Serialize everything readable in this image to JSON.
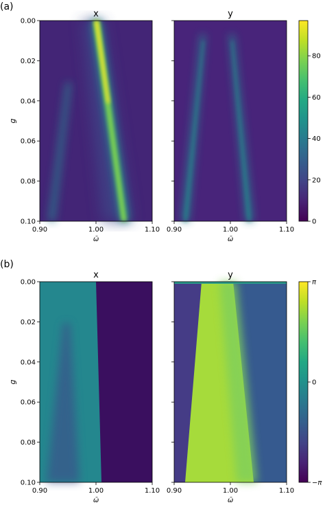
{
  "chart_data": [
    {
      "panel_label": "(a)",
      "type": "heatmap",
      "subplots": [
        {
          "title": "x",
          "xlabel": "ω̄",
          "ylabel": "g",
          "xlim": [
            0.9,
            1.1
          ],
          "ylim": [
            0.1,
            0.0
          ],
          "xticks": [
            "0.90",
            "1.00",
            "1.10"
          ],
          "yticks": [
            "0.00",
            "0.02",
            "0.04",
            "0.06",
            "0.08",
            "0.10"
          ],
          "features": [
            {
              "kind": "bright-line",
              "from": [
                1.0,
                0.0
              ],
              "to": [
                1.03,
                0.1
              ],
              "value": 95
            },
            {
              "kind": "faint-line",
              "from": [
                0.96,
                0.03
              ],
              "to": [
                0.92,
                0.1
              ],
              "value": 25
            }
          ],
          "background": 10
        },
        {
          "title": "y",
          "xlabel": "ω̄",
          "ylabel": "",
          "xlim": [
            0.9,
            1.1
          ],
          "ylim": [
            0.1,
            0.0
          ],
          "xticks": [
            "0.90",
            "1.00",
            "1.10"
          ],
          "yticks": [],
          "features": [
            {
              "kind": "faint-line",
              "from": [
                0.98,
                0.01
              ],
              "to": [
                0.92,
                0.1
              ],
              "value": 35
            },
            {
              "kind": "faint-line",
              "from": [
                1.0,
                0.01
              ],
              "to": [
                1.04,
                0.1
              ],
              "value": 35
            }
          ],
          "background": 12
        }
      ],
      "colorbar": {
        "min": 0,
        "max": 97,
        "ticks": [
          "0",
          "20",
          "40",
          "60",
          "80"
        ],
        "tick_values": [
          0,
          20,
          40,
          60,
          80
        ]
      }
    },
    {
      "panel_label": "(b)",
      "type": "heatmap",
      "subplots": [
        {
          "title": "x",
          "xlabel": "ω̄",
          "ylabel": "g",
          "xlim": [
            0.9,
            1.1
          ],
          "ylim": [
            0.1,
            0.0
          ],
          "xticks": [
            "0.90",
            "1.00",
            "1.10"
          ],
          "yticks": [
            "0.00",
            "0.02",
            "0.04",
            "0.06",
            "0.08",
            "0.10"
          ],
          "description_values": {
            "left_region_phase": 0.1,
            "right_region_phase": -2.6,
            "boundary": [
              [
                0.995,
                0.0
              ],
              [
                1.0,
                0.1
              ]
            ]
          }
        },
        {
          "title": "y",
          "xlabel": "ω̄",
          "ylabel": "",
          "xlim": [
            0.9,
            1.1
          ],
          "ylim": [
            0.1,
            0.0
          ],
          "xticks": [
            "0.90",
            "1.00",
            "1.10"
          ],
          "yticks": [],
          "description_values": {
            "left_region_phase": -1.4,
            "middle_region_phase": 2.2,
            "right_region_phase": -1.0,
            "left_boundary": [
              [
                0.947,
                0.0
              ],
              [
                0.92,
                0.1
              ]
            ],
            "right_boundary": [
              [
                1.0,
                0.0
              ],
              [
                1.03,
                0.1
              ]
            ]
          }
        }
      ],
      "colorbar": {
        "min": -3.1416,
        "max": 3.1416,
        "ticks": [
          "π",
          "0",
          "−π"
        ],
        "tick_values": [
          3.1416,
          0,
          -3.1416
        ]
      }
    }
  ]
}
